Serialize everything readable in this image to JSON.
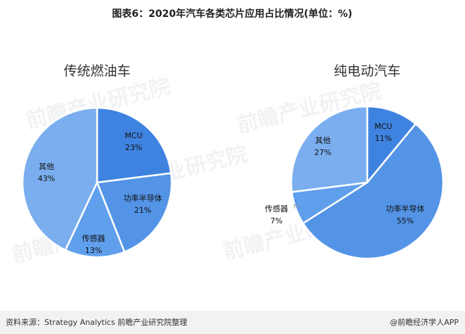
{
  "header": {
    "title": "图表6：2020年汽车各类芯片应用占比情况(单位：%)"
  },
  "chart_data": [
    {
      "type": "pie",
      "title": "传统燃油车",
      "slices": [
        {
          "label": "MCU",
          "value": 23,
          "value_label": "23%",
          "color": "#3f83e0"
        },
        {
          "label": "功率半导体",
          "value": 21,
          "value_label": "21%",
          "color": "#5494e6"
        },
        {
          "label": "传感器",
          "value": 13,
          "value_label": "13%",
          "color": "#609fec"
        },
        {
          "label": "其他",
          "value": 43,
          "value_label": "43%",
          "color": "#7aaeee"
        }
      ]
    },
    {
      "type": "pie",
      "title": "纯电动汽车",
      "slices": [
        {
          "label": "MCU",
          "value": 11,
          "value_label": "11%",
          "color": "#3f83e0"
        },
        {
          "label": "功率半导体",
          "value": 55,
          "value_label": "55%",
          "color": "#5494e6"
        },
        {
          "label": "传感器",
          "value": 7,
          "value_label": "7%",
          "color": "#609fec"
        },
        {
          "label": "其他",
          "value": 27,
          "value_label": "27%",
          "color": "#7aaeee"
        }
      ]
    }
  ],
  "footer": {
    "source": "资料来源：Strategy Analytics 前瞻产业研究院整理",
    "brand": "@前瞻经济学人APP"
  },
  "watermark": "前瞻产业研究院"
}
